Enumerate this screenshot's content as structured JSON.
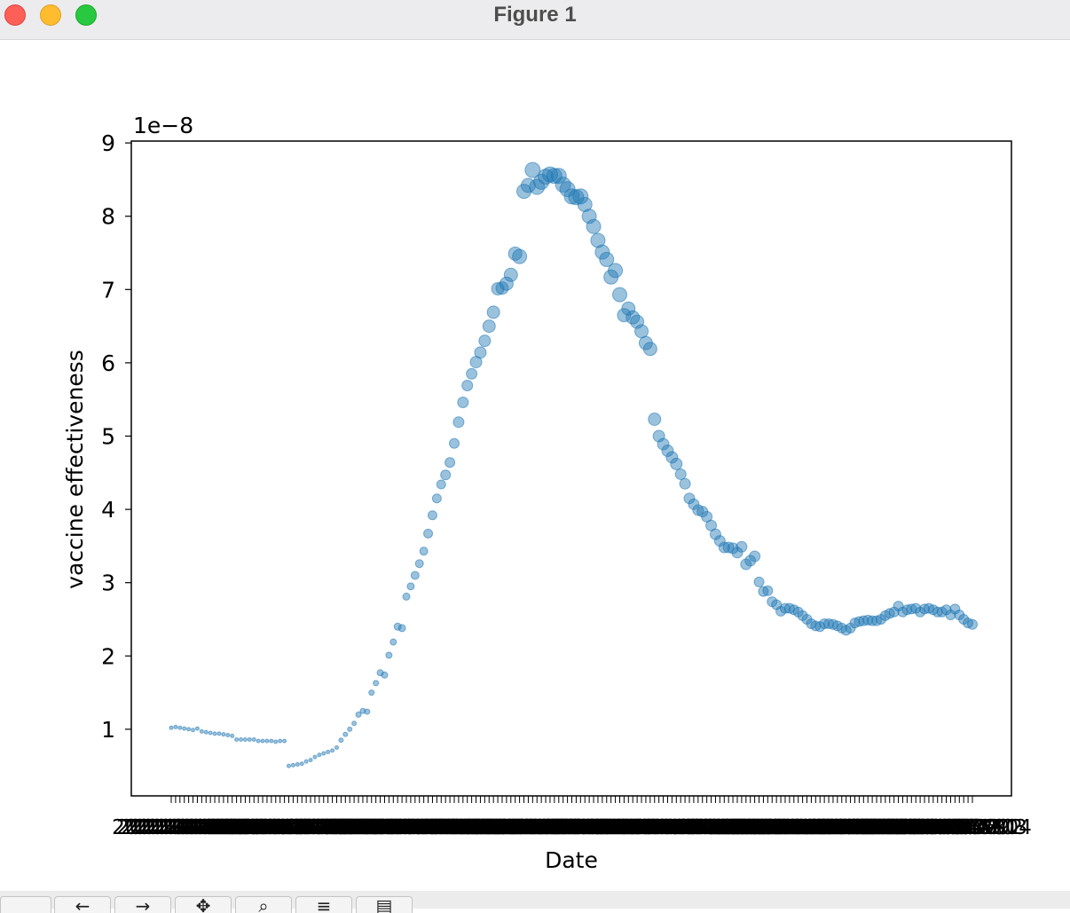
{
  "window": {
    "title": "Figure 1"
  },
  "toolbar": {
    "buttons": [
      {
        "name": "home-button",
        "glyph": ""
      },
      {
        "name": "back-button",
        "glyph": "←"
      },
      {
        "name": "forward-button",
        "glyph": "→"
      },
      {
        "name": "pan-button",
        "glyph": "✥"
      },
      {
        "name": "zoom-button",
        "glyph": "⌕"
      },
      {
        "name": "subplots-button",
        "glyph": "≡"
      },
      {
        "name": "save-button",
        "glyph": "▤"
      }
    ]
  },
  "chart_data": {
    "type": "scatter",
    "title": "",
    "xlabel": "Date",
    "ylabel": "vaccine effectiveness",
    "y_offset_text": "1e−8",
    "y_scale_factor": 1e-08,
    "ylim": [
      0.1,
      9.0
    ],
    "yticks": [
      1,
      2,
      3,
      4,
      5,
      6,
      7,
      8,
      9
    ],
    "grid": false,
    "legend": "none",
    "marker_color": "#1f77b4",
    "marker_alpha": 0.45,
    "x_tick_labels_overlapping": true,
    "points": [
      {
        "x": "2021-01-01",
        "y": 1.02,
        "s": 2
      },
      {
        "x": "2021-01-02",
        "y": 1.03,
        "s": 2
      },
      {
        "x": "2021-01-03",
        "y": 1.02,
        "s": 2
      },
      {
        "x": "2021-01-04",
        "y": 1.01,
        "s": 2
      },
      {
        "x": "2021-01-05",
        "y": 1.0,
        "s": 2
      },
      {
        "x": "2021-01-06",
        "y": 0.99,
        "s": 2
      },
      {
        "x": "2021-01-07",
        "y": 1.01,
        "s": 2
      },
      {
        "x": "2021-01-08",
        "y": 0.97,
        "s": 2
      },
      {
        "x": "2021-01-09",
        "y": 0.96,
        "s": 2
      },
      {
        "x": "2021-01-10",
        "y": 0.95,
        "s": 2
      },
      {
        "x": "2021-01-11",
        "y": 0.94,
        "s": 2
      },
      {
        "x": "2021-01-12",
        "y": 0.94,
        "s": 2
      },
      {
        "x": "2021-01-13",
        "y": 0.93,
        "s": 2
      },
      {
        "x": "2021-01-14",
        "y": 0.92,
        "s": 2
      },
      {
        "x": "2021-01-15",
        "y": 0.91,
        "s": 2
      },
      {
        "x": "2021-01-16",
        "y": 0.86,
        "s": 2
      },
      {
        "x": "2021-01-17",
        "y": 0.86,
        "s": 2
      },
      {
        "x": "2021-01-18",
        "y": 0.86,
        "s": 2
      },
      {
        "x": "2021-01-19",
        "y": 0.86,
        "s": 2
      },
      {
        "x": "2021-01-20",
        "y": 0.86,
        "s": 2
      },
      {
        "x": "2021-01-21",
        "y": 0.84,
        "s": 2
      },
      {
        "x": "2021-01-22",
        "y": 0.84,
        "s": 2
      },
      {
        "x": "2021-01-23",
        "y": 0.84,
        "s": 2
      },
      {
        "x": "2021-01-24",
        "y": 0.84,
        "s": 2
      },
      {
        "x": "2021-01-25",
        "y": 0.83,
        "s": 2
      },
      {
        "x": "2021-01-26",
        "y": 0.84,
        "s": 2
      },
      {
        "x": "2021-01-27",
        "y": 0.84,
        "s": 2
      },
      {
        "x": "2021-01-28",
        "y": 0.5,
        "s": 2
      },
      {
        "x": "2021-01-29",
        "y": 0.51,
        "s": 2
      },
      {
        "x": "2021-01-30",
        "y": 0.52,
        "s": 2
      },
      {
        "x": "2021-01-31",
        "y": 0.53,
        "s": 2
      },
      {
        "x": "2021-02-01",
        "y": 0.56,
        "s": 2
      },
      {
        "x": "2021-02-02",
        "y": 0.58,
        "s": 2
      },
      {
        "x": "2021-02-03",
        "y": 0.62,
        "s": 2
      },
      {
        "x": "2021-02-04",
        "y": 0.65,
        "s": 2
      },
      {
        "x": "2021-02-05",
        "y": 0.67,
        "s": 2
      },
      {
        "x": "2021-02-06",
        "y": 0.69,
        "s": 2
      },
      {
        "x": "2021-02-07",
        "y": 0.71,
        "s": 2
      },
      {
        "x": "2021-02-08",
        "y": 0.75,
        "s": 2
      },
      {
        "x": "2021-02-09",
        "y": 0.85,
        "s": 2.5
      },
      {
        "x": "2021-02-10",
        "y": 0.93,
        "s": 2.5
      },
      {
        "x": "2021-02-11",
        "y": 1.0,
        "s": 2.5
      },
      {
        "x": "2021-02-12",
        "y": 1.08,
        "s": 2.5
      },
      {
        "x": "2021-02-13",
        "y": 1.2,
        "s": 3
      },
      {
        "x": "2021-02-14",
        "y": 1.25,
        "s": 3
      },
      {
        "x": "2021-02-15",
        "y": 1.24,
        "s": 3
      },
      {
        "x": "2021-02-16",
        "y": 1.5,
        "s": 3
      },
      {
        "x": "2021-02-17",
        "y": 1.63,
        "s": 3
      },
      {
        "x": "2021-02-18",
        "y": 1.77,
        "s": 3.5
      },
      {
        "x": "2021-02-19",
        "y": 1.74,
        "s": 3.5
      },
      {
        "x": "2021-02-20",
        "y": 2.01,
        "s": 3.5
      },
      {
        "x": "2021-02-21",
        "y": 2.19,
        "s": 3.5
      },
      {
        "x": "2021-02-22",
        "y": 2.4,
        "s": 4
      },
      {
        "x": "2021-02-23",
        "y": 2.38,
        "s": 4
      },
      {
        "x": "2021-02-24",
        "y": 2.81,
        "s": 4
      },
      {
        "x": "2021-02-25",
        "y": 2.95,
        "s": 4
      },
      {
        "x": "2021-02-26",
        "y": 3.1,
        "s": 4.5
      },
      {
        "x": "2021-02-27",
        "y": 3.26,
        "s": 4.5
      },
      {
        "x": "2021-02-28",
        "y": 3.43,
        "s": 4.5
      },
      {
        "x": "2021-03-01",
        "y": 3.67,
        "s": 5
      },
      {
        "x": "2021-03-02",
        "y": 3.92,
        "s": 5
      },
      {
        "x": "2021-03-03",
        "y": 4.15,
        "s": 5
      },
      {
        "x": "2021-03-04",
        "y": 4.34,
        "s": 5
      },
      {
        "x": "2021-03-05",
        "y": 4.47,
        "s": 5.5
      },
      {
        "x": "2021-03-06",
        "y": 4.64,
        "s": 5.5
      },
      {
        "x": "2021-03-07",
        "y": 4.9,
        "s": 5.5
      },
      {
        "x": "2021-03-08",
        "y": 5.19,
        "s": 6
      },
      {
        "x": "2021-03-09",
        "y": 5.46,
        "s": 6
      },
      {
        "x": "2021-03-10",
        "y": 5.69,
        "s": 6
      },
      {
        "x": "2021-03-11",
        "y": 5.85,
        "s": 6
      },
      {
        "x": "2021-03-12",
        "y": 6.01,
        "s": 6.5
      },
      {
        "x": "2021-03-13",
        "y": 6.14,
        "s": 6.5
      },
      {
        "x": "2021-03-14",
        "y": 6.3,
        "s": 6.5
      },
      {
        "x": "2021-03-15",
        "y": 6.5,
        "s": 7
      },
      {
        "x": "2021-03-16",
        "y": 6.69,
        "s": 7
      },
      {
        "x": "2021-03-17",
        "y": 7.01,
        "s": 7
      },
      {
        "x": "2021-03-18",
        "y": 7.02,
        "s": 7
      },
      {
        "x": "2021-03-19",
        "y": 7.08,
        "s": 7.5
      },
      {
        "x": "2021-03-20",
        "y": 7.2,
        "s": 7.5
      },
      {
        "x": "2021-03-21",
        "y": 7.49,
        "s": 7.5
      },
      {
        "x": "2021-03-22",
        "y": 7.45,
        "s": 8
      },
      {
        "x": "2021-03-23",
        "y": 8.34,
        "s": 8
      },
      {
        "x": "2021-03-24",
        "y": 8.42,
        "s": 8
      },
      {
        "x": "2021-03-25",
        "y": 8.63,
        "s": 8.5
      },
      {
        "x": "2021-03-26",
        "y": 8.4,
        "s": 8.5
      },
      {
        "x": "2021-03-27",
        "y": 8.47,
        "s": 8.5
      },
      {
        "x": "2021-03-28",
        "y": 8.54,
        "s": 8.5
      },
      {
        "x": "2021-03-29",
        "y": 8.57,
        "s": 8.5
      },
      {
        "x": "2021-03-30",
        "y": 8.55,
        "s": 8.5
      },
      {
        "x": "2021-03-31",
        "y": 8.55,
        "s": 8.5
      },
      {
        "x": "2021-04-01",
        "y": 8.43,
        "s": 8.5
      },
      {
        "x": "2021-04-02",
        "y": 8.37,
        "s": 8.5
      },
      {
        "x": "2021-04-03",
        "y": 8.27,
        "s": 8.5
      },
      {
        "x": "2021-04-04",
        "y": 8.26,
        "s": 8.5
      },
      {
        "x": "2021-04-05",
        "y": 8.27,
        "s": 8.5
      },
      {
        "x": "2021-04-06",
        "y": 8.16,
        "s": 8
      },
      {
        "x": "2021-04-07",
        "y": 8.0,
        "s": 8
      },
      {
        "x": "2021-04-08",
        "y": 7.86,
        "s": 8
      },
      {
        "x": "2021-04-09",
        "y": 7.67,
        "s": 8
      },
      {
        "x": "2021-04-10",
        "y": 7.51,
        "s": 8
      },
      {
        "x": "2021-04-11",
        "y": 7.41,
        "s": 8
      },
      {
        "x": "2021-04-12",
        "y": 7.17,
        "s": 8
      },
      {
        "x": "2021-04-13",
        "y": 7.26,
        "s": 8
      },
      {
        "x": "2021-04-14",
        "y": 6.93,
        "s": 8
      },
      {
        "x": "2021-04-15",
        "y": 6.65,
        "s": 7.5
      },
      {
        "x": "2021-04-16",
        "y": 6.74,
        "s": 7.5
      },
      {
        "x": "2021-04-17",
        "y": 6.62,
        "s": 7.5
      },
      {
        "x": "2021-04-18",
        "y": 6.56,
        "s": 7.5
      },
      {
        "x": "2021-04-19",
        "y": 6.43,
        "s": 7.5
      },
      {
        "x": "2021-04-20",
        "y": 6.27,
        "s": 7.5
      },
      {
        "x": "2021-04-21",
        "y": 6.19,
        "s": 7.5
      },
      {
        "x": "2021-04-22",
        "y": 5.23,
        "s": 7
      },
      {
        "x": "2021-04-23",
        "y": 5.0,
        "s": 6.5
      },
      {
        "x": "2021-04-24",
        "y": 4.89,
        "s": 6.5
      },
      {
        "x": "2021-04-25",
        "y": 4.8,
        "s": 6.5
      },
      {
        "x": "2021-04-26",
        "y": 4.71,
        "s": 6.5
      },
      {
        "x": "2021-04-27",
        "y": 4.62,
        "s": 6.5
      },
      {
        "x": "2021-04-28",
        "y": 4.48,
        "s": 6
      },
      {
        "x": "2021-04-29",
        "y": 4.35,
        "s": 6
      },
      {
        "x": "2021-04-30",
        "y": 4.15,
        "s": 6
      },
      {
        "x": "2021-05-01",
        "y": 4.07,
        "s": 6
      },
      {
        "x": "2021-05-02",
        "y": 3.99,
        "s": 6
      },
      {
        "x": "2021-05-03",
        "y": 3.97,
        "s": 6
      },
      {
        "x": "2021-05-04",
        "y": 3.9,
        "s": 6
      },
      {
        "x": "2021-05-05",
        "y": 3.78,
        "s": 6
      },
      {
        "x": "2021-05-06",
        "y": 3.66,
        "s": 6
      },
      {
        "x": "2021-05-07",
        "y": 3.57,
        "s": 6
      },
      {
        "x": "2021-05-08",
        "y": 3.48,
        "s": 6
      },
      {
        "x": "2021-05-09",
        "y": 3.48,
        "s": 6
      },
      {
        "x": "2021-05-10",
        "y": 3.47,
        "s": 6
      },
      {
        "x": "2021-05-11",
        "y": 3.41,
        "s": 6
      },
      {
        "x": "2021-05-12",
        "y": 3.49,
        "s": 6
      },
      {
        "x": "2021-05-13",
        "y": 3.25,
        "s": 6
      },
      {
        "x": "2021-05-14",
        "y": 3.3,
        "s": 6
      },
      {
        "x": "2021-05-15",
        "y": 3.36,
        "s": 6
      },
      {
        "x": "2021-05-16",
        "y": 3.01,
        "s": 5.5
      },
      {
        "x": "2021-05-17",
        "y": 2.88,
        "s": 5.5
      },
      {
        "x": "2021-05-18",
        "y": 2.89,
        "s": 5.5
      },
      {
        "x": "2021-05-19",
        "y": 2.74,
        "s": 5.5
      },
      {
        "x": "2021-05-20",
        "y": 2.7,
        "s": 5.5
      },
      {
        "x": "2021-05-21",
        "y": 2.61,
        "s": 5.5
      },
      {
        "x": "2021-05-22",
        "y": 2.65,
        "s": 5.5
      },
      {
        "x": "2021-05-23",
        "y": 2.65,
        "s": 5.5
      },
      {
        "x": "2021-05-24",
        "y": 2.63,
        "s": 5.5
      },
      {
        "x": "2021-05-25",
        "y": 2.6,
        "s": 5.5
      },
      {
        "x": "2021-05-26",
        "y": 2.55,
        "s": 5.5
      },
      {
        "x": "2021-05-27",
        "y": 2.5,
        "s": 5.5
      },
      {
        "x": "2021-05-28",
        "y": 2.44,
        "s": 5.5
      },
      {
        "x": "2021-05-29",
        "y": 2.41,
        "s": 5.5
      },
      {
        "x": "2021-05-30",
        "y": 2.4,
        "s": 5.5
      },
      {
        "x": "2021-05-31",
        "y": 2.44,
        "s": 5.5
      },
      {
        "x": "2021-06-01",
        "y": 2.44,
        "s": 5.5
      },
      {
        "x": "2021-06-02",
        "y": 2.43,
        "s": 5.5
      },
      {
        "x": "2021-06-03",
        "y": 2.41,
        "s": 5.5
      },
      {
        "x": "2021-06-04",
        "y": 2.38,
        "s": 5.5
      },
      {
        "x": "2021-06-05",
        "y": 2.35,
        "s": 5.5
      },
      {
        "x": "2021-06-06",
        "y": 2.38,
        "s": 5.5
      },
      {
        "x": "2021-06-07",
        "y": 2.45,
        "s": 5.5
      },
      {
        "x": "2021-06-08",
        "y": 2.47,
        "s": 5.5
      },
      {
        "x": "2021-06-09",
        "y": 2.48,
        "s": 5.5
      },
      {
        "x": "2021-06-10",
        "y": 2.49,
        "s": 5.5
      },
      {
        "x": "2021-06-11",
        "y": 2.48,
        "s": 5.5
      },
      {
        "x": "2021-06-12",
        "y": 2.48,
        "s": 5.5
      },
      {
        "x": "2021-06-13",
        "y": 2.5,
        "s": 5.5
      },
      {
        "x": "2021-06-14",
        "y": 2.55,
        "s": 5.5
      },
      {
        "x": "2021-06-15",
        "y": 2.58,
        "s": 5.5
      },
      {
        "x": "2021-06-16",
        "y": 2.6,
        "s": 5.5
      },
      {
        "x": "2021-06-17",
        "y": 2.68,
        "s": 5.5
      },
      {
        "x": "2021-06-18",
        "y": 2.6,
        "s": 5.5
      },
      {
        "x": "2021-06-19",
        "y": 2.63,
        "s": 5.5
      },
      {
        "x": "2021-06-20",
        "y": 2.64,
        "s": 5.5
      },
      {
        "x": "2021-06-21",
        "y": 2.65,
        "s": 5.5
      },
      {
        "x": "2021-06-22",
        "y": 2.6,
        "s": 5.5
      },
      {
        "x": "2021-06-23",
        "y": 2.64,
        "s": 5.5
      },
      {
        "x": "2021-06-24",
        "y": 2.65,
        "s": 5.5
      },
      {
        "x": "2021-06-25",
        "y": 2.63,
        "s": 5.5
      },
      {
        "x": "2021-06-26",
        "y": 2.6,
        "s": 5.5
      },
      {
        "x": "2021-06-27",
        "y": 2.6,
        "s": 5.5
      },
      {
        "x": "2021-06-28",
        "y": 2.63,
        "s": 5.5
      },
      {
        "x": "2021-06-29",
        "y": 2.56,
        "s": 5.5
      },
      {
        "x": "2021-06-30",
        "y": 2.64,
        "s": 5.5
      },
      {
        "x": "2021-07-01",
        "y": 2.56,
        "s": 5.5
      },
      {
        "x": "2021-07-02",
        "y": 2.5,
        "s": 5.5
      },
      {
        "x": "2021-07-03",
        "y": 2.45,
        "s": 5.5
      },
      {
        "x": "2021-07-04",
        "y": 2.43,
        "s": 5.5
      }
    ]
  }
}
